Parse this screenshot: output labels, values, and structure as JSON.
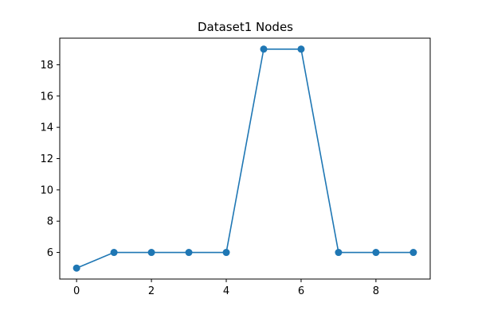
{
  "chart_data": {
    "type": "line",
    "title": "Dataset1 Nodes",
    "xlabel": "",
    "ylabel": "",
    "x": [
      0,
      1,
      2,
      3,
      4,
      5,
      6,
      7,
      8,
      9
    ],
    "series": [
      {
        "values": [
          5,
          6,
          6,
          6,
          6,
          19,
          19,
          6,
          6,
          6
        ],
        "color": "#1f77b4"
      }
    ],
    "xlim": [
      -0.45,
      9.45
    ],
    "ylim": [
      4.3,
      19.7
    ],
    "xticks": [
      0,
      2,
      4,
      6,
      8
    ],
    "yticks": [
      6,
      8,
      10,
      12,
      14,
      16,
      18
    ],
    "marker": "circle",
    "grid": false,
    "legend": false
  }
}
